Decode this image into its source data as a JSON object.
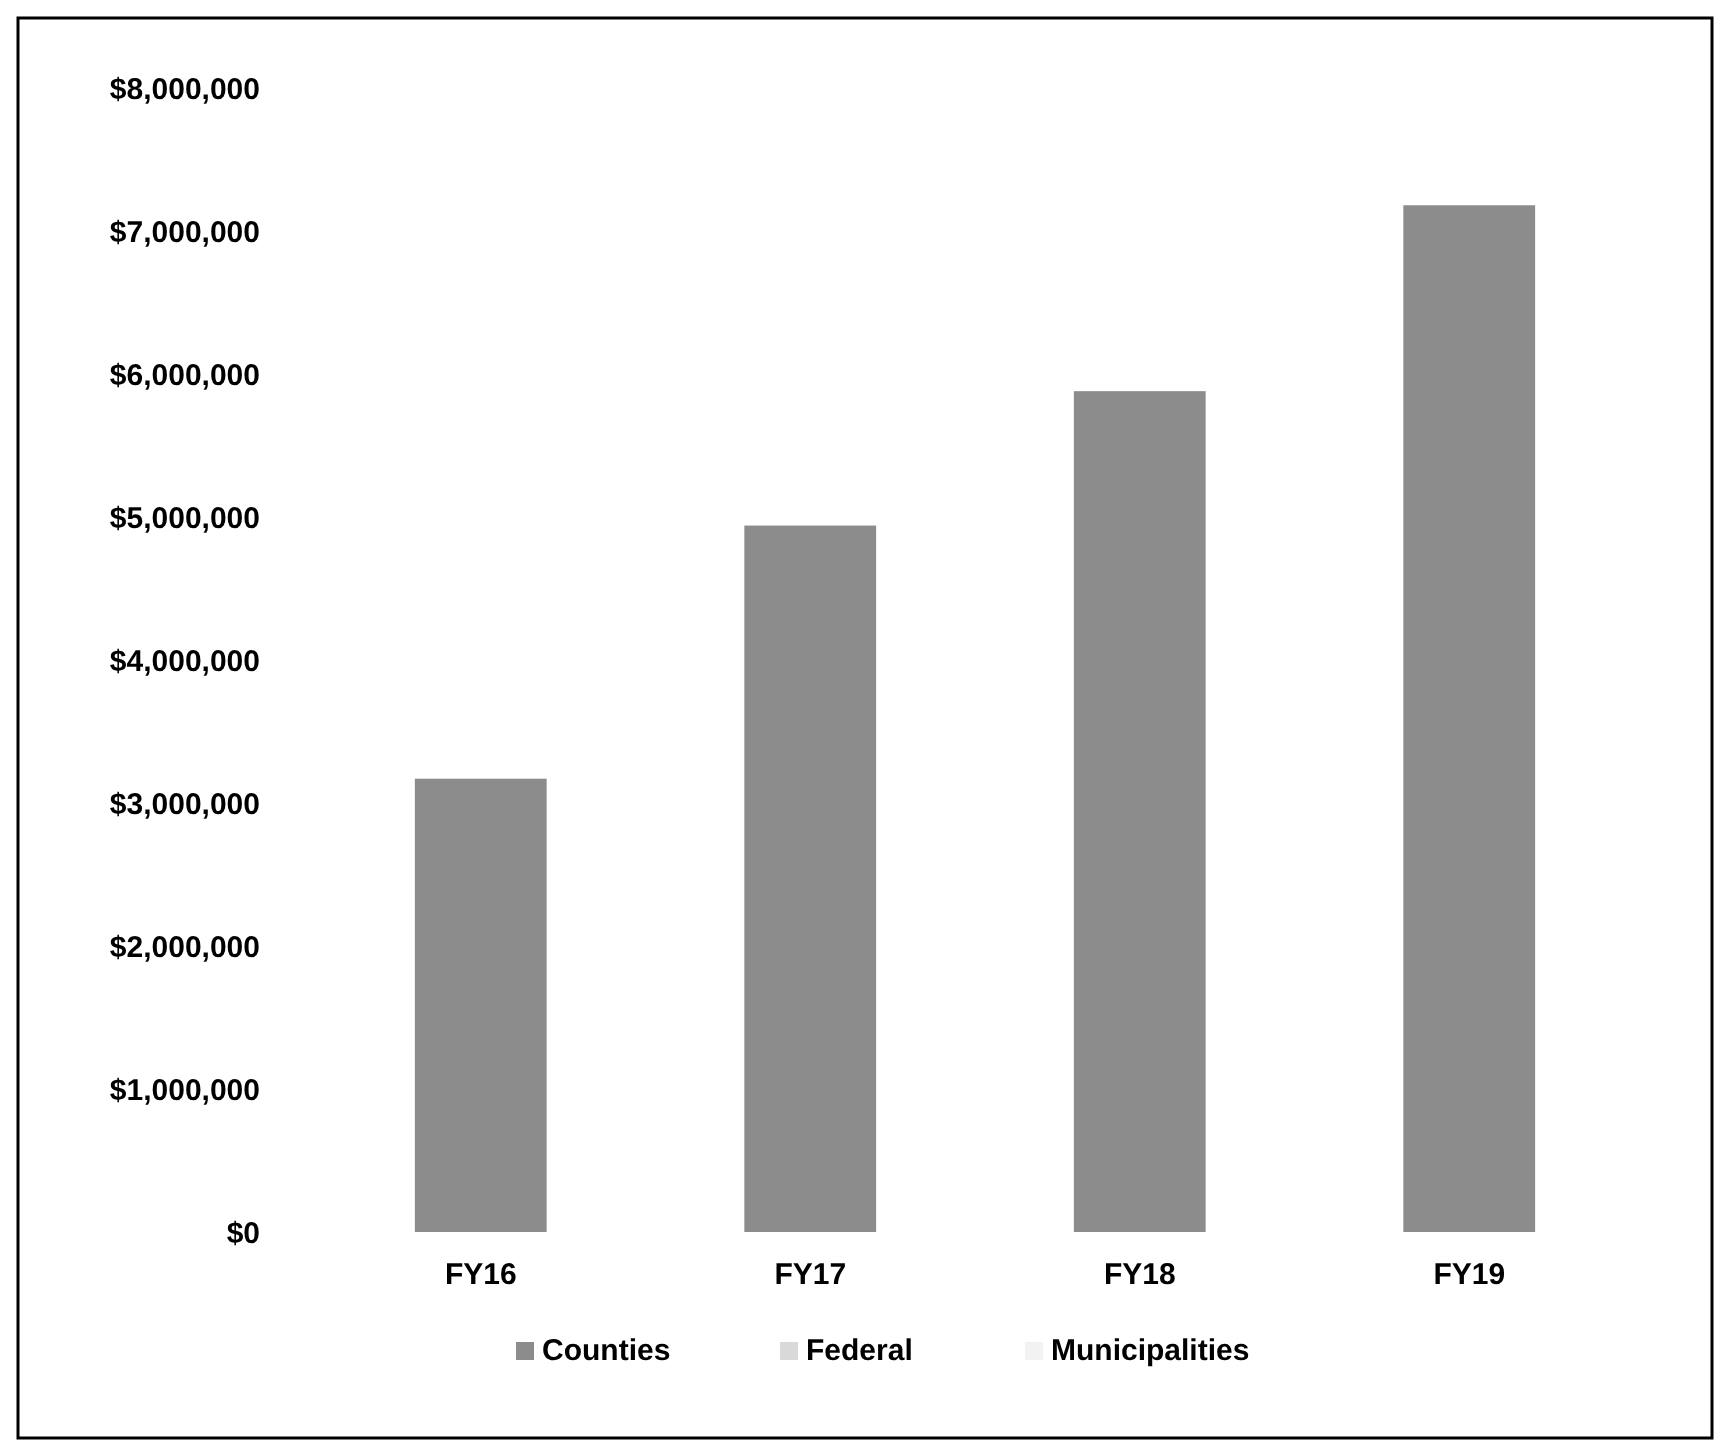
{
  "chart_data": {
    "type": "bar",
    "categories": [
      "FY16",
      "FY17",
      "FY18",
      "FY19"
    ],
    "series": [
      {
        "name": "Counties",
        "color": "#8c8c8c",
        "values": [
          3170000,
          4940000,
          5880000,
          7180000
        ]
      },
      {
        "name": "Federal",
        "color": "#d9d9d9",
        "values": [
          null,
          null,
          null,
          null
        ]
      },
      {
        "name": "Municipalities",
        "color": "#f2f2f2",
        "values": [
          null,
          null,
          null,
          null
        ]
      }
    ],
    "ylim": [
      0,
      8000000
    ],
    "yticks": [
      {
        "value": 0,
        "label": "$0"
      },
      {
        "value": 1000000,
        "label": "$1,000,000"
      },
      {
        "value": 2000000,
        "label": "$2,000,000"
      },
      {
        "value": 3000000,
        "label": "$3,000,000"
      },
      {
        "value": 4000000,
        "label": "$4,000,000"
      },
      {
        "value": 5000000,
        "label": "$5,000,000"
      },
      {
        "value": 6000000,
        "label": "$6,000,000"
      },
      {
        "value": 7000000,
        "label": "$7,000,000"
      },
      {
        "value": 8000000,
        "label": "$8,000,000"
      }
    ],
    "legend": "bottom"
  }
}
